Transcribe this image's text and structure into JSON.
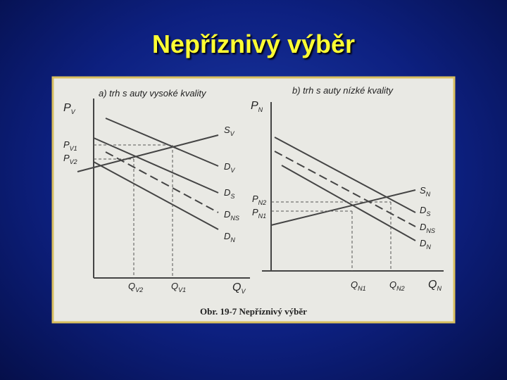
{
  "title": "Nepříznivý výběr",
  "panel_a": {
    "heading": "a) trh s auty vysoké kvality",
    "labels": [
      {
        "base": "P",
        "sub": "V"
      },
      {
        "base": "P",
        "sub": "V1"
      },
      {
        "base": "P",
        "sub": "V2"
      },
      {
        "base": "S",
        "sub": "V"
      },
      {
        "base": "D",
        "sub": "V"
      },
      {
        "base": "D",
        "sub": "S"
      },
      {
        "base": "D",
        "sub": "NS"
      },
      {
        "base": "D",
        "sub": "N"
      },
      {
        "base": "Q",
        "sub": "V2"
      },
      {
        "base": "Q",
        "sub": "V1"
      },
      {
        "base": "Q",
        "sub": "V"
      }
    ]
  },
  "panel_b": {
    "heading": "b) trh s auty nízké kvality",
    "labels": [
      {
        "base": "P",
        "sub": "N"
      },
      {
        "base": "P",
        "sub": "N2"
      },
      {
        "base": "P",
        "sub": "N1"
      },
      {
        "base": "S",
        "sub": "N"
      },
      {
        "base": "D",
        "sub": "S"
      },
      {
        "base": "D",
        "sub": "NS"
      },
      {
        "base": "D",
        "sub": "N"
      },
      {
        "base": "Q",
        "sub": "N1"
      },
      {
        "base": "Q",
        "sub": "N2"
      },
      {
        "base": "Q",
        "sub": "N"
      }
    ]
  },
  "caption": "Obr. 19-7  Nepříznivý výběr"
}
